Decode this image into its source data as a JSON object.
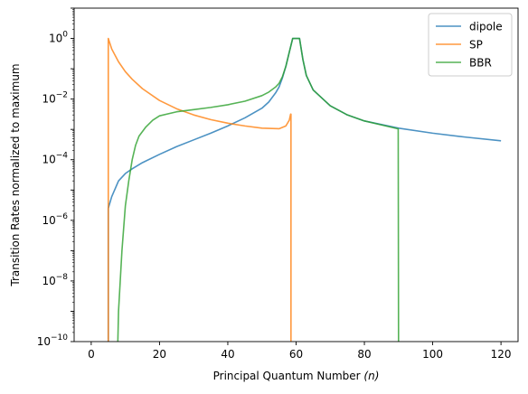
{
  "chart_data": {
    "type": "line",
    "title": "",
    "xlabel": "Principal Quantum Number",
    "xlabel_var": "(n)",
    "ylabel": "Transition Rates normalized to maximum",
    "xlim": [
      -5,
      125
    ],
    "ylim_exponents": [
      -10,
      1
    ],
    "yscale": "log",
    "grid": false,
    "legend_position": "top-right",
    "x_ticks": [
      0,
      20,
      40,
      60,
      80,
      100,
      120
    ],
    "y_tick_exponents": [
      -10,
      -8,
      -6,
      -4,
      -2,
      0
    ],
    "series": [
      {
        "name": "dipole",
        "color": "#1f77b4",
        "x": [
          5,
          5,
          6,
          8,
          10,
          12,
          15,
          20,
          25,
          30,
          35,
          40,
          45,
          50,
          52,
          54,
          55,
          56,
          57,
          58,
          59,
          59.5,
          60,
          60.5,
          61,
          62,
          63,
          65,
          70,
          75,
          80,
          90,
          100,
          110,
          120
        ],
        "y": [
          1e-10,
          2.5e-06,
          6e-06,
          2e-05,
          3.5e-05,
          5e-05,
          8e-05,
          0.00015,
          0.00027,
          0.00045,
          0.00075,
          0.0013,
          0.0024,
          0.005,
          0.008,
          0.016,
          0.025,
          0.05,
          0.12,
          0.35,
          1.0,
          1.0,
          1.0,
          1.0,
          1.0,
          0.2,
          0.06,
          0.02,
          0.006,
          0.003,
          0.0019,
          0.0011,
          0.00075,
          0.00055,
          0.00042
        ]
      },
      {
        "name": "SP",
        "color": "#ff7f0e",
        "x": [
          5,
          5,
          6,
          8,
          10,
          12,
          15,
          20,
          25,
          30,
          35,
          40,
          45,
          50,
          55,
          57,
          58,
          58.4,
          58.5,
          58.5
        ],
        "y": [
          1e-10,
          1.0,
          0.45,
          0.17,
          0.08,
          0.045,
          0.022,
          0.009,
          0.0048,
          0.003,
          0.0021,
          0.0016,
          0.0013,
          0.0011,
          0.00105,
          0.0013,
          0.002,
          0.0032,
          0.0032,
          1e-10
        ]
      },
      {
        "name": "BBR",
        "color": "#2ca02c",
        "x": [
          7.8,
          8,
          9,
          10,
          11,
          12,
          13,
          14,
          16,
          18,
          20,
          25,
          30,
          35,
          40,
          45,
          50,
          52,
          54,
          55,
          56,
          57,
          58,
          59,
          59.5,
          60,
          60.5,
          61,
          62,
          63,
          65,
          70,
          75,
          80,
          85,
          89.8,
          89.9,
          90
        ],
        "y": [
          1e-10,
          1e-09,
          1e-07,
          3e-06,
          2e-05,
          0.0001,
          0.0003,
          0.0006,
          0.0012,
          0.002,
          0.0028,
          0.0038,
          0.0045,
          0.0053,
          0.0065,
          0.0085,
          0.013,
          0.017,
          0.025,
          0.033,
          0.055,
          0.12,
          0.35,
          1.0,
          1.0,
          1.0,
          1.0,
          1.0,
          0.2,
          0.06,
          0.02,
          0.006,
          0.003,
          0.0019,
          0.0014,
          0.00105,
          0.00105,
          1e-10
        ]
      }
    ]
  }
}
